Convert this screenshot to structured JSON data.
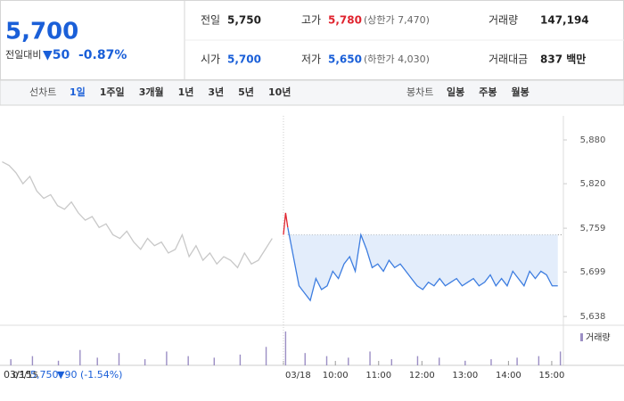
{
  "quote": {
    "price": "5,700",
    "change_label": "전일대비",
    "change": "▼50",
    "change_pct": "-0.87%"
  },
  "summary": [
    {
      "label": "전일",
      "value": "5,750"
    },
    {
      "label": "고가",
      "value": "5,780",
      "note": "(상한가 7,470)"
    },
    {
      "label": "거래량",
      "value": "147,194"
    },
    {
      "label": "시가",
      "value": "5,700"
    },
    {
      "label": "저가",
      "value": "5,650",
      "note": "(하한가 4,030)"
    },
    {
      "label": "거래대금",
      "value": "837 백만"
    }
  ],
  "tabs": {
    "line_label": "선차트",
    "line_periods": [
      "1일",
      "1주일",
      "3개월",
      "1년",
      "3년",
      "5년",
      "10년"
    ],
    "candle_label": "봉차트",
    "candle_periods": [
      "일봉",
      "주봉",
      "월봉"
    ]
  },
  "footer": {
    "date": "03/15",
    "close": "5,750",
    "change": "▼90 (-1.54%)"
  },
  "chart_data": {
    "type": "line",
    "ylim": [
      5626,
      5913
    ],
    "yticks": [
      {
        "value": 5880,
        "label": "5,880"
      },
      {
        "value": 5820,
        "label": "5,820"
      },
      {
        "value": 5759,
        "label": "5,759"
      },
      {
        "value": 5699,
        "label": "5,699"
      },
      {
        "value": 5638,
        "label": "5,638"
      }
    ],
    "xlim": [
      2.25,
      16.67
    ],
    "xticks": [
      {
        "value": 2.5,
        "label": "03/15"
      },
      {
        "value": 8.8,
        "label": "03/18"
      },
      {
        "value": 10,
        "label": "10:00"
      },
      {
        "value": 11,
        "label": "11:00"
      },
      {
        "value": 12,
        "label": "12:00"
      },
      {
        "value": 13,
        "label": "13:00"
      },
      {
        "value": 14,
        "label": "14:00"
      },
      {
        "value": 15,
        "label": "15:00"
      }
    ],
    "baseline": 5750,
    "series": [
      {
        "color": "#c8c8c8",
        "x": [
          2.3,
          2.46,
          2.62,
          2.78,
          2.94,
          3.1,
          3.26,
          3.42,
          3.58,
          3.74,
          3.9,
          4.06,
          4.22,
          4.38,
          4.54,
          4.7,
          4.86,
          5.02,
          5.18,
          5.34,
          5.5,
          5.66,
          5.82,
          5.98,
          6.14,
          6.3,
          6.46,
          6.62,
          6.78,
          6.94,
          7.1,
          7.26,
          7.42,
          7.58,
          7.74,
          7.9,
          8.06,
          8.22,
          8.38,
          8.54
        ],
        "values": [
          5850,
          5845,
          5835,
          5820,
          5830,
          5810,
          5800,
          5805,
          5790,
          5785,
          5795,
          5780,
          5770,
          5775,
          5760,
          5765,
          5750,
          5745,
          5755,
          5740,
          5730,
          5745,
          5735,
          5740,
          5725,
          5730,
          5750,
          5720,
          5735,
          5715,
          5725,
          5710,
          5720,
          5715,
          5705,
          5725,
          5710,
          5715,
          5730,
          5745
        ]
      },
      {
        "color": "#e0242f",
        "x": [
          8.8,
          8.85,
          8.9
        ],
        "values": [
          5750,
          5780,
          5760
        ]
      },
      {
        "color": "#3d7de0",
        "fill": "#e3edfb",
        "x": [
          8.9,
          9.03,
          9.16,
          9.29,
          9.42,
          9.55,
          9.68,
          9.81,
          9.94,
          10.07,
          10.2,
          10.33,
          10.46,
          10.59,
          10.72,
          10.85,
          10.98,
          11.11,
          11.24,
          11.37,
          11.5,
          11.63,
          11.76,
          11.89,
          12.02,
          12.15,
          12.28,
          12.41,
          12.54,
          12.67,
          12.8,
          12.93,
          13.06,
          13.19,
          13.32,
          13.45,
          13.58,
          13.71,
          13.84,
          13.97,
          14.1,
          14.23,
          14.36,
          14.49,
          14.62,
          14.75,
          14.88,
          15.01,
          15.14
        ],
        "values": [
          5760,
          5720,
          5680,
          5670,
          5660,
          5690,
          5675,
          5680,
          5700,
          5690,
          5710,
          5720,
          5700,
          5750,
          5730,
          5705,
          5710,
          5700,
          5715,
          5705,
          5710,
          5700,
          5690,
          5680,
          5675,
          5685,
          5680,
          5690,
          5680,
          5685,
          5690,
          5680,
          5685,
          5690,
          5680,
          5685,
          5695,
          5680,
          5690,
          5680,
          5700,
          5690,
          5680,
          5700,
          5690,
          5700,
          5695,
          5680,
          5680
        ]
      }
    ],
    "volume": {
      "name": "거래량",
      "color": "#9b8ec4",
      "x": [
        2.5,
        3.0,
        3.6,
        4.1,
        4.5,
        5.0,
        5.6,
        6.1,
        6.6,
        7.2,
        7.8,
        8.4,
        8.85,
        9.3,
        9.8,
        10.3,
        10.8,
        11.3,
        11.9,
        12.4,
        13.0,
        13.6,
        14.2,
        14.7,
        15.2
      ],
      "values": [
        4,
        6,
        3,
        10,
        5,
        8,
        4,
        9,
        6,
        5,
        7,
        12,
        22,
        8,
        6,
        5,
        9,
        4,
        6,
        5,
        3,
        4,
        5,
        6,
        9
      ]
    }
  }
}
